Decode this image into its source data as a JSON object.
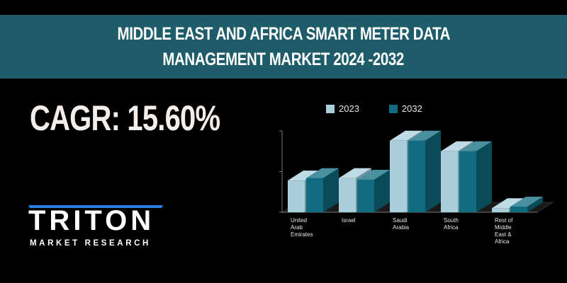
{
  "header": {
    "title_line1": "MIDDLE EAST AND AFRICA SMART METER DATA",
    "title_line2": "MANAGEMENT MARKET 2024 -2032"
  },
  "cagr": {
    "text": "CAGR: 15.60%"
  },
  "logo": {
    "word": "TRITON",
    "subtitle": "MARKET RESEARCH"
  },
  "colors": {
    "banner": "#1d5c68",
    "series_2023": "#a9cfdc",
    "series_2032": "#0e6b80",
    "logo_accent": "#2a7de1"
  },
  "chart_data": {
    "type": "bar",
    "bar_style": "3d",
    "categories": [
      "United Arab Emirates",
      "Israel",
      "Saudi Arabia",
      "South Africa",
      "Rest of Middle East & Africa"
    ],
    "category_label_lines": [
      [
        "United",
        "Arab",
        "Emirates"
      ],
      [
        "Israel"
      ],
      [
        "Saudi",
        "Arabia"
      ],
      [
        "South",
        "Africa"
      ],
      [
        "Rest of",
        "Middle",
        "East &",
        "Africa"
      ]
    ],
    "series": [
      {
        "name": "2023",
        "values": [
          0.39,
          0.42,
          0.88,
          0.75,
          0.05
        ]
      },
      {
        "name": "2032",
        "values": [
          0.42,
          0.4,
          0.88,
          0.75,
          0.07
        ]
      }
    ],
    "ylim": [
      0,
      1.0
    ],
    "y_ticks_labeled": false,
    "grid": false,
    "legend_position": "top"
  }
}
